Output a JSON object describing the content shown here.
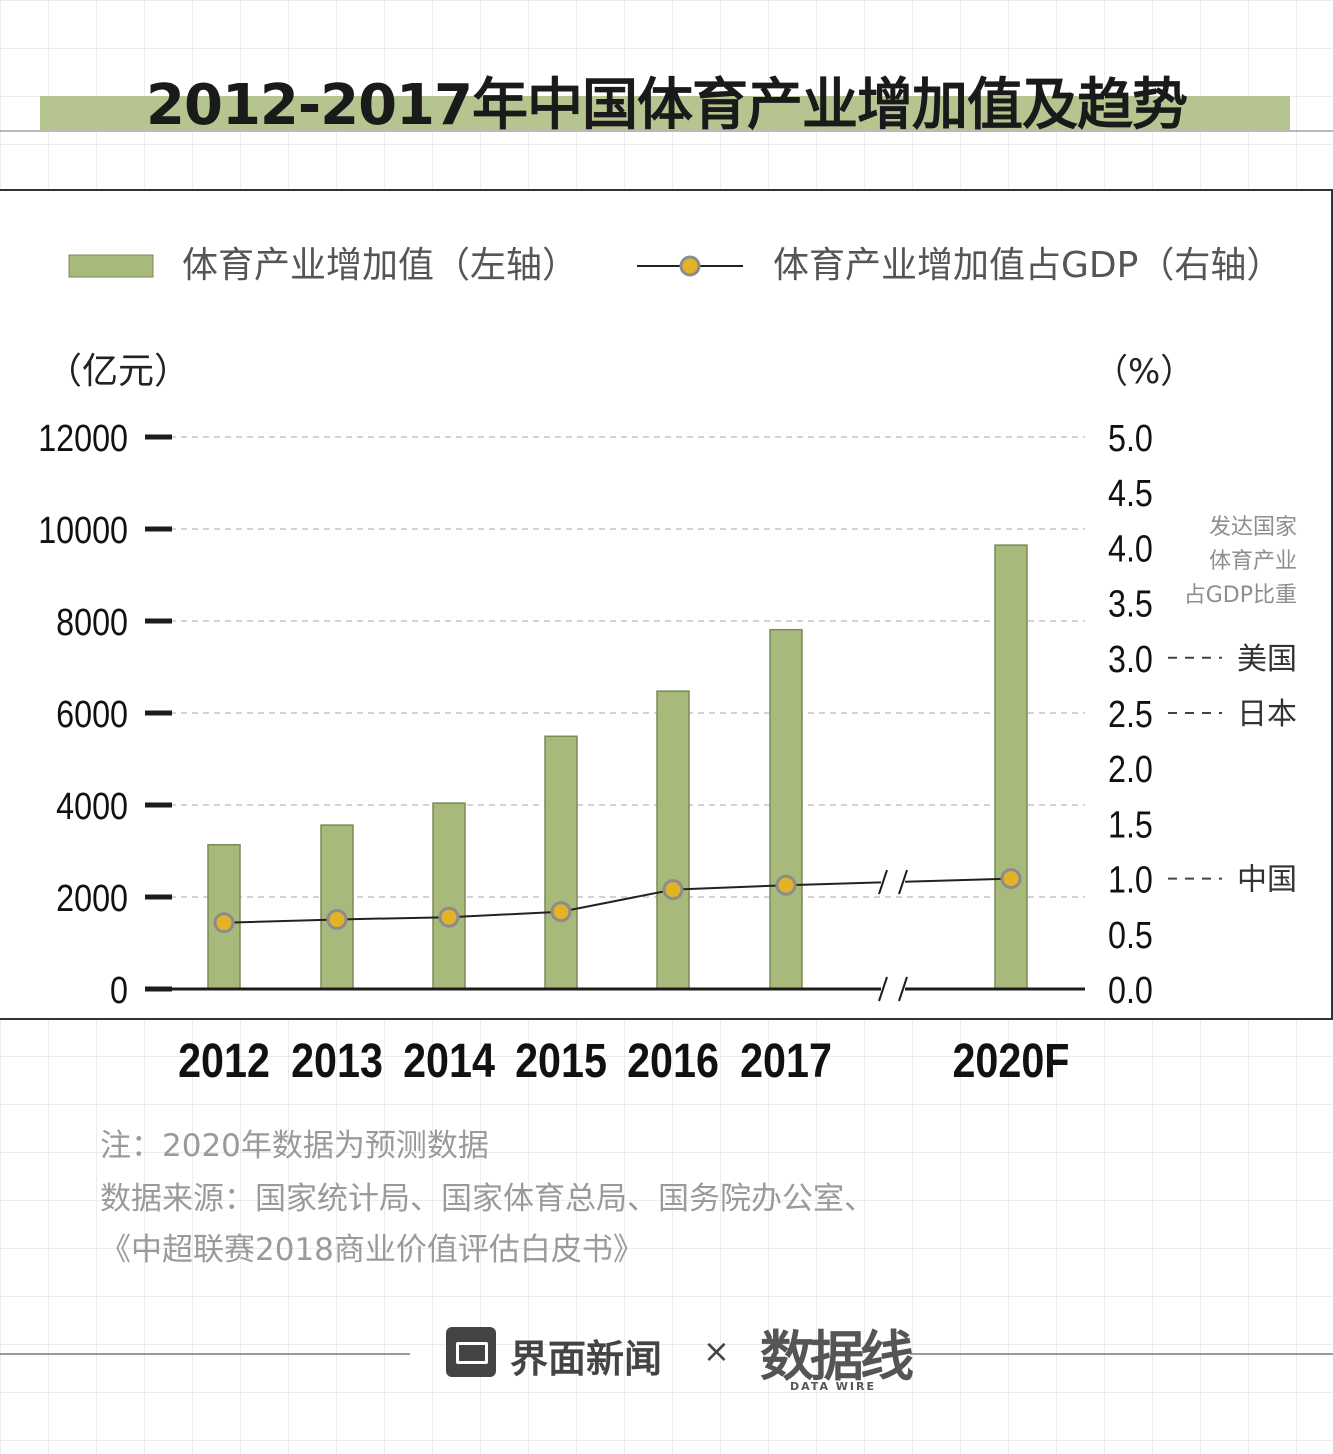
{
  "title": "2012-2017年中国体育产业增加值及趋势",
  "colors": {
    "bar": "#a8b97c",
    "bar_stroke": "#7a8a55",
    "title_bar": "#b6c590",
    "dot_fill": "#e2b227",
    "dot_stroke": "#8c8c8c",
    "line": "#222222"
  },
  "chart_data": {
    "type": "bar",
    "categories": [
      "2012",
      "2013",
      "2014",
      "2015",
      "2016",
      "2017",
      "2020F"
    ],
    "series": [
      {
        "name": "体育产业增加值（左轴）",
        "type": "bar",
        "axis": "left",
        "values": [
          3136,
          3563,
          4041,
          5494,
          6475,
          7811,
          9650
        ]
      },
      {
        "name": "体育产业增加值占GDP（右轴）",
        "type": "line",
        "axis": "right",
        "values": [
          0.6,
          0.63,
          0.65,
          0.7,
          0.9,
          0.94,
          1.0
        ]
      }
    ],
    "left_axis": {
      "unit": "（亿元）",
      "min": 0,
      "max": 12000,
      "ticks": [
        "0",
        "2000",
        "4000",
        "6000",
        "8000",
        "10000",
        "12000"
      ]
    },
    "right_axis": {
      "unit": "（%）",
      "min": 0,
      "max": 5,
      "ticks": [
        "0.0",
        "0.5",
        "1.0",
        "1.5",
        "2.0",
        "2.5",
        "3.0",
        "3.5",
        "4.0",
        "4.5",
        "5.0"
      ]
    },
    "axis_break_between": [
      "2017",
      "2020F"
    ],
    "legend_position": "top",
    "reference_title": "发达国家\n体育产业\n占GDP比重",
    "reference_lines": [
      {
        "label": "美国",
        "value": 3.0
      },
      {
        "label": "日本",
        "value": 2.5
      },
      {
        "label": "中国",
        "value": 1.0
      }
    ],
    "watermark": "数据线 DATA WIRE"
  },
  "notes": {
    "note": "注：2020年数据为预测数据",
    "source_line1": "数据来源：国家统计局、国家体育总局、国务院办公室、",
    "source_line2": "《中超联赛2018商业价值评估白皮书》"
  },
  "footer": {
    "brand": "界面新闻",
    "times": "×",
    "partner": "数据线",
    "partner_sub": "DATA WIRE"
  }
}
